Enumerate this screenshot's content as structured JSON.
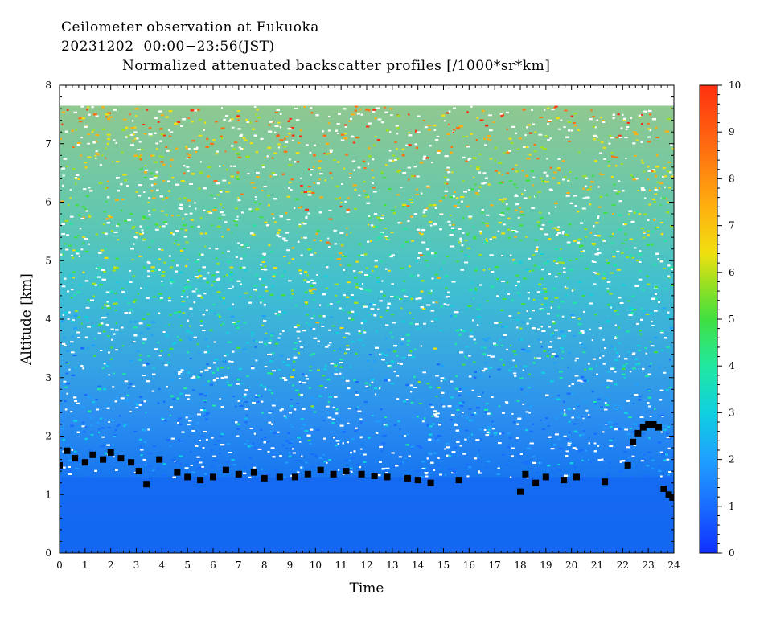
{
  "titles": {
    "line1": "Ceilometer observation at Fukuoka",
    "line2": "20231202  00:00−23:56(JST)",
    "line3": "Normalized attenuated backscatter profiles [/1000*sr*km]"
  },
  "chart_data": {
    "type": "heatmap",
    "xlabel": "Time",
    "ylabel": "Altitude [km]",
    "xlim": [
      0,
      24
    ],
    "ylim": [
      0,
      8
    ],
    "x_ticks": [
      0,
      1,
      2,
      3,
      4,
      5,
      6,
      7,
      8,
      9,
      10,
      11,
      12,
      13,
      14,
      15,
      16,
      17,
      18,
      19,
      20,
      21,
      22,
      23,
      24
    ],
    "y_ticks": [
      0,
      1,
      2,
      3,
      4,
      5,
      6,
      7,
      8
    ],
    "colorbar": {
      "min": 0,
      "max": 10,
      "ticks": [
        0,
        1,
        2,
        3,
        4,
        5,
        6,
        7,
        8,
        9,
        10
      ],
      "colors": [
        "#1030ff",
        "#1a6cff",
        "#1fa0ff",
        "#10d0e0",
        "#20e8a0",
        "#40e040",
        "#a0e020",
        "#f0e010",
        "#ffb010",
        "#ff7010",
        "#ff3010"
      ]
    },
    "data_top_km": 7.65,
    "cloud_base_points": [
      {
        "t": 0.0,
        "h": 1.5
      },
      {
        "t": 0.3,
        "h": 1.75
      },
      {
        "t": 0.6,
        "h": 1.62
      },
      {
        "t": 1.0,
        "h": 1.55
      },
      {
        "t": 1.3,
        "h": 1.68
      },
      {
        "t": 1.7,
        "h": 1.6
      },
      {
        "t": 2.0,
        "h": 1.72
      },
      {
        "t": 2.4,
        "h": 1.62
      },
      {
        "t": 2.8,
        "h": 1.55
      },
      {
        "t": 3.1,
        "h": 1.4
      },
      {
        "t": 3.4,
        "h": 1.18
      },
      {
        "t": 3.9,
        "h": 1.6
      },
      {
        "t": 4.6,
        "h": 1.38
      },
      {
        "t": 5.0,
        "h": 1.3
      },
      {
        "t": 5.5,
        "h": 1.25
      },
      {
        "t": 6.0,
        "h": 1.3
      },
      {
        "t": 6.5,
        "h": 1.42
      },
      {
        "t": 7.0,
        "h": 1.35
      },
      {
        "t": 7.6,
        "h": 1.38
      },
      {
        "t": 8.0,
        "h": 1.28
      },
      {
        "t": 8.6,
        "h": 1.3
      },
      {
        "t": 9.2,
        "h": 1.3
      },
      {
        "t": 9.7,
        "h": 1.35
      },
      {
        "t": 10.2,
        "h": 1.42
      },
      {
        "t": 10.7,
        "h": 1.35
      },
      {
        "t": 11.2,
        "h": 1.4
      },
      {
        "t": 11.8,
        "h": 1.35
      },
      {
        "t": 12.3,
        "h": 1.32
      },
      {
        "t": 12.8,
        "h": 1.3
      },
      {
        "t": 13.6,
        "h": 1.28
      },
      {
        "t": 14.0,
        "h": 1.25
      },
      {
        "t": 14.5,
        "h": 1.2
      },
      {
        "t": 15.6,
        "h": 1.25
      },
      {
        "t": 18.0,
        "h": 1.05
      },
      {
        "t": 18.2,
        "h": 1.35
      },
      {
        "t": 18.6,
        "h": 1.2
      },
      {
        "t": 19.0,
        "h": 1.3
      },
      {
        "t": 19.7,
        "h": 1.25
      },
      {
        "t": 20.2,
        "h": 1.3
      },
      {
        "t": 21.3,
        "h": 1.22
      },
      {
        "t": 22.2,
        "h": 1.5
      },
      {
        "t": 22.4,
        "h": 1.9
      },
      {
        "t": 22.6,
        "h": 2.05
      },
      {
        "t": 22.8,
        "h": 2.15
      },
      {
        "t": 23.0,
        "h": 2.2
      },
      {
        "t": 23.2,
        "h": 2.2
      },
      {
        "t": 23.4,
        "h": 2.15
      },
      {
        "t": 23.6,
        "h": 1.1
      },
      {
        "t": 23.8,
        "h": 1.0
      },
      {
        "t": 23.95,
        "h": 0.95
      }
    ]
  }
}
